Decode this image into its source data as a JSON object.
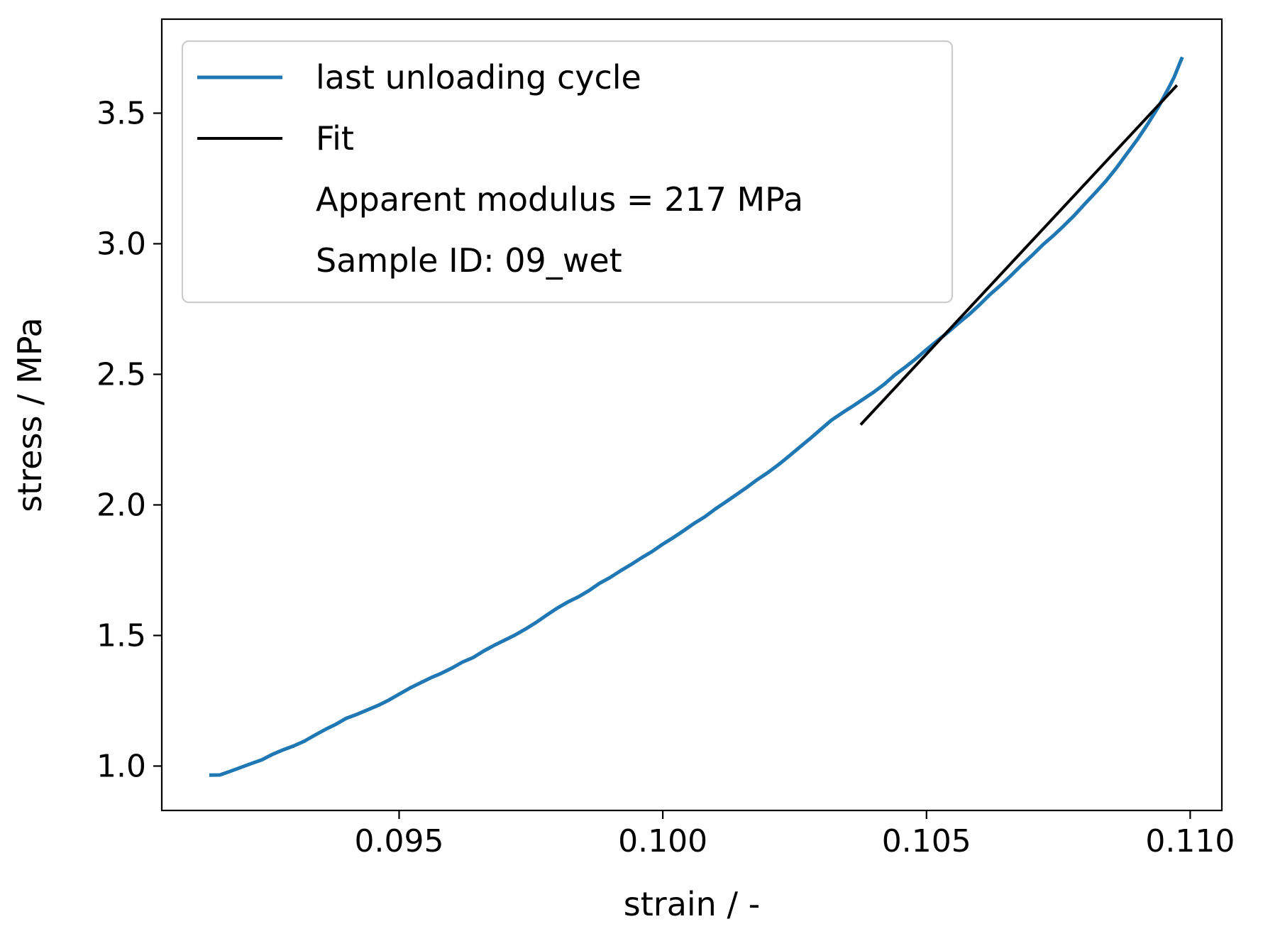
{
  "chart_data": {
    "type": "line",
    "title": "",
    "xlabel": "strain / -",
    "ylabel": "stress / MPa",
    "xlim": [
      0.0905,
      0.1106
    ],
    "ylim": [
      0.83,
      3.86
    ],
    "xticks": [
      0.095,
      0.1,
      0.105,
      0.11
    ],
    "xtick_labels": [
      "0.095",
      "0.100",
      "0.105",
      "0.110"
    ],
    "yticks": [
      1.0,
      1.5,
      2.0,
      2.5,
      3.0,
      3.5
    ],
    "ytick_labels": [
      "1.0",
      "1.5",
      "2.0",
      "2.5",
      "3.0",
      "3.5"
    ],
    "grid": false,
    "legend_position": "upper-left",
    "legend": [
      {
        "label": "last unloading cycle",
        "color": "#1f77b4",
        "marker": "line"
      },
      {
        "label": "Fit",
        "color": "#000000",
        "marker": "line"
      },
      {
        "label": "Apparent modulus = 217 MPa",
        "color": "",
        "marker": "none"
      },
      {
        "label": "Sample ID: 09_wet",
        "color": "",
        "marker": "none"
      }
    ],
    "series": [
      {
        "name": "last unloading cycle",
        "color": "#1f77b4",
        "points": [
          [
            0.0914,
            0.965
          ],
          [
            0.0916,
            0.966
          ],
          [
            0.0918,
            0.98
          ],
          [
            0.092,
            0.995
          ],
          [
            0.0922,
            1.01
          ],
          [
            0.0924,
            1.024
          ],
          [
            0.0926,
            1.045
          ],
          [
            0.0928,
            1.062
          ],
          [
            0.093,
            1.077
          ],
          [
            0.0932,
            1.095
          ],
          [
            0.0934,
            1.118
          ],
          [
            0.0936,
            1.14
          ],
          [
            0.0938,
            1.16
          ],
          [
            0.094,
            1.183
          ],
          [
            0.0942,
            1.198
          ],
          [
            0.0944,
            1.215
          ],
          [
            0.0946,
            1.232
          ],
          [
            0.0948,
            1.252
          ],
          [
            0.095,
            1.275
          ],
          [
            0.0952,
            1.298
          ],
          [
            0.0954,
            1.318
          ],
          [
            0.0956,
            1.338
          ],
          [
            0.0958,
            1.355
          ],
          [
            0.096,
            1.375
          ],
          [
            0.0962,
            1.398
          ],
          [
            0.0964,
            1.415
          ],
          [
            0.0966,
            1.44
          ],
          [
            0.0968,
            1.462
          ],
          [
            0.097,
            1.482
          ],
          [
            0.0972,
            1.502
          ],
          [
            0.0974,
            1.525
          ],
          [
            0.0976,
            1.55
          ],
          [
            0.0978,
            1.578
          ],
          [
            0.098,
            1.605
          ],
          [
            0.0982,
            1.628
          ],
          [
            0.0984,
            1.648
          ],
          [
            0.0986,
            1.672
          ],
          [
            0.0988,
            1.7
          ],
          [
            0.099,
            1.722
          ],
          [
            0.0992,
            1.748
          ],
          [
            0.0994,
            1.772
          ],
          [
            0.0996,
            1.798
          ],
          [
            0.0998,
            1.822
          ],
          [
            0.1,
            1.85
          ],
          [
            0.1002,
            1.875
          ],
          [
            0.1004,
            1.902
          ],
          [
            0.1006,
            1.93
          ],
          [
            0.1008,
            1.955
          ],
          [
            0.101,
            1.985
          ],
          [
            0.1012,
            2.012
          ],
          [
            0.1014,
            2.04
          ],
          [
            0.1016,
            2.068
          ],
          [
            0.1018,
            2.098
          ],
          [
            0.102,
            2.125
          ],
          [
            0.1022,
            2.155
          ],
          [
            0.1024,
            2.188
          ],
          [
            0.1026,
            2.222
          ],
          [
            0.1028,
            2.255
          ],
          [
            0.103,
            2.29
          ],
          [
            0.1032,
            2.325
          ],
          [
            0.1034,
            2.352
          ],
          [
            0.1036,
            2.378
          ],
          [
            0.1038,
            2.405
          ],
          [
            0.104,
            2.432
          ],
          [
            0.1042,
            2.462
          ],
          [
            0.1044,
            2.498
          ],
          [
            0.1046,
            2.528
          ],
          [
            0.1048,
            2.56
          ],
          [
            0.105,
            2.595
          ],
          [
            0.1052,
            2.628
          ],
          [
            0.1054,
            2.66
          ],
          [
            0.1056,
            2.695
          ],
          [
            0.1058,
            2.728
          ],
          [
            0.106,
            2.765
          ],
          [
            0.1062,
            2.805
          ],
          [
            0.1064,
            2.84
          ],
          [
            0.1066,
            2.878
          ],
          [
            0.1068,
            2.918
          ],
          [
            0.107,
            2.955
          ],
          [
            0.1072,
            2.995
          ],
          [
            0.1074,
            3.03
          ],
          [
            0.1076,
            3.068
          ],
          [
            0.1078,
            3.108
          ],
          [
            0.108,
            3.152
          ],
          [
            0.1082,
            3.195
          ],
          [
            0.1084,
            3.24
          ],
          [
            0.1086,
            3.29
          ],
          [
            0.1088,
            3.345
          ],
          [
            0.109,
            3.4
          ],
          [
            0.1092,
            3.46
          ],
          [
            0.1094,
            3.525
          ],
          [
            0.1096,
            3.6
          ],
          [
            0.1097,
            3.64
          ],
          [
            0.1098,
            3.69
          ],
          [
            0.10985,
            3.715
          ]
        ]
      },
      {
        "name": "Fit",
        "color": "#000000",
        "points": [
          [
            0.10375,
            2.307
          ],
          [
            0.10975,
            3.607
          ]
        ]
      }
    ]
  }
}
